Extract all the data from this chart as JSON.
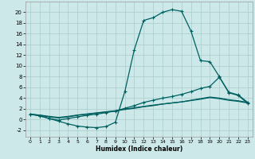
{
  "xlabel": "Humidex (Indice chaleur)",
  "bg_color": "#cce8e8",
  "grid_color": "#aacccc",
  "line_color": "#006060",
  "xlim": [
    -0.5,
    23.5
  ],
  "ylim": [
    -3.2,
    22
  ],
  "xticks": [
    0,
    1,
    2,
    3,
    4,
    5,
    6,
    7,
    8,
    9,
    10,
    11,
    12,
    13,
    14,
    15,
    16,
    17,
    18,
    19,
    20,
    21,
    22,
    23
  ],
  "yticks": [
    -2,
    0,
    2,
    4,
    6,
    8,
    10,
    12,
    14,
    16,
    18,
    20
  ],
  "curve1_x": [
    0,
    1,
    2,
    3,
    4,
    5,
    6,
    7,
    8,
    9,
    10,
    11,
    12,
    13,
    14,
    15,
    16,
    17,
    18,
    19,
    20,
    21,
    22,
    23
  ],
  "curve1_y": [
    1.0,
    0.7,
    0.2,
    -0.3,
    -0.8,
    -1.2,
    -1.4,
    -1.5,
    -1.3,
    -0.5,
    5.2,
    13.0,
    18.5,
    19.0,
    20.0,
    20.5,
    20.2,
    16.5,
    11.0,
    10.8,
    8.0,
    5.0,
    4.5,
    3.0
  ],
  "curve2_x": [
    0,
    1,
    2,
    3,
    4,
    5,
    6,
    7,
    8,
    9,
    10,
    11,
    12,
    13,
    14,
    15,
    16,
    17,
    18,
    19,
    20,
    21,
    22,
    23
  ],
  "curve2_y": [
    1.0,
    0.7,
    0.2,
    -0.1,
    0.2,
    0.5,
    0.8,
    1.0,
    1.3,
    1.6,
    2.1,
    2.6,
    3.2,
    3.6,
    4.0,
    4.3,
    4.7,
    5.2,
    5.8,
    6.2,
    7.9,
    5.1,
    4.6,
    3.2
  ],
  "curve3_x": [
    0,
    1,
    2,
    3,
    4,
    5,
    6,
    7,
    8,
    9,
    10,
    11,
    12,
    13,
    14,
    15,
    16,
    17,
    18,
    19,
    20,
    21,
    22,
    23
  ],
  "curve3_y": [
    1.0,
    0.8,
    0.5,
    0.3,
    0.5,
    0.8,
    1.0,
    1.2,
    1.4,
    1.6,
    1.9,
    2.1,
    2.4,
    2.6,
    2.9,
    3.1,
    3.3,
    3.6,
    3.9,
    4.2,
    4.0,
    3.7,
    3.5,
    3.2
  ],
  "curve4_x": [
    0,
    1,
    2,
    3,
    4,
    5,
    6,
    7,
    8,
    9,
    10,
    11,
    12,
    13,
    14,
    15,
    16,
    17,
    18,
    19,
    20,
    21,
    22,
    23
  ],
  "curve4_y": [
    1.0,
    0.85,
    0.6,
    0.4,
    0.6,
    0.85,
    1.05,
    1.25,
    1.45,
    1.65,
    1.95,
    2.2,
    2.45,
    2.7,
    2.9,
    3.1,
    3.3,
    3.55,
    3.8,
    4.1,
    3.9,
    3.6,
    3.4,
    3.1
  ]
}
